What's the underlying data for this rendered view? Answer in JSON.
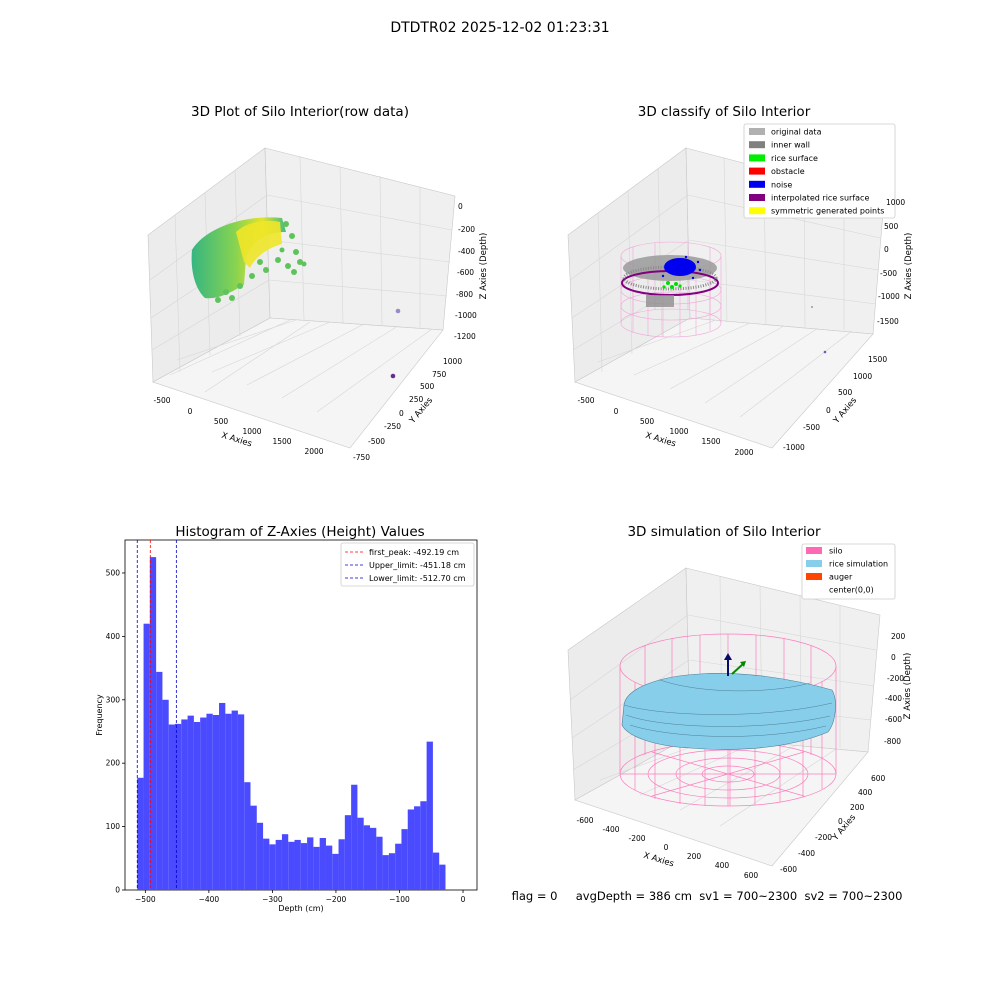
{
  "figure": {
    "suptitle": "DTDTR02 2025-12-02 01:23:31",
    "status_line": "flag = 0     avgDepth = 386 cm  sv1 = 700~2300  sv2 = 700~2300"
  },
  "panels": {
    "raw": {
      "title": "3D Plot of Silo Interior(row data)",
      "xlabel": "X Axies",
      "ylabel": "Y Axies",
      "zlabel": "Z Axies (Depth)",
      "xticks": [
        "-500",
        "0",
        "500",
        "1000",
        "1500",
        "2000"
      ],
      "yticks": [
        "-750",
        "-500",
        "-250",
        "0",
        "250",
        "500",
        "750",
        "1000"
      ],
      "zticks": [
        "0",
        "-200",
        "-400",
        "-600",
        "-800",
        "-1000",
        "-1200"
      ]
    },
    "classify": {
      "title": "3D classify of Silo Interior",
      "xlabel": "X Axies",
      "ylabel": "Y Axies",
      "zlabel": "Z Axies (Depth)",
      "xticks": [
        "-500",
        "0",
        "500",
        "1000",
        "1500",
        "2000"
      ],
      "yticks": [
        "-1000",
        "-500",
        "0",
        "500",
        "1000",
        "1500"
      ],
      "zticks": [
        "1000",
        "500",
        "0",
        "-500",
        "-1000",
        "-1500"
      ],
      "legend": [
        {
          "label": "original data",
          "color": "#b0b0b0"
        },
        {
          "label": "inner wall",
          "color": "#808080"
        },
        {
          "label": "rice surface",
          "color": "#00ee00"
        },
        {
          "label": "obstacle",
          "color": "#ff0000"
        },
        {
          "label": "noise",
          "color": "#0000ee"
        },
        {
          "label": "interpolated rice surface",
          "color": "#800080"
        },
        {
          "label": "symmetric generated points",
          "color": "#ffff00"
        }
      ]
    },
    "simulation": {
      "title": "3D simulation of Silo Interior",
      "xlabel": "X Axies",
      "ylabel": "Y Axies",
      "zlabel": "Z Axies (Depth)",
      "xticks": [
        "-600",
        "-400",
        "-200",
        "0",
        "200",
        "400",
        "600"
      ],
      "yticks": [
        "-600",
        "-400",
        "-200",
        "0",
        "200",
        "400",
        "600"
      ],
      "zticks": [
        "200",
        "0",
        "-200",
        "-400",
        "-600",
        "-800"
      ],
      "legend": [
        {
          "label": "silo",
          "color": "#ff69b4"
        },
        {
          "label": "rice simulation",
          "color": "#87ceeb"
        },
        {
          "label": "auger",
          "color": "#ff4500"
        },
        {
          "label": "center(0,0)",
          "color": ""
        }
      ]
    }
  },
  "chart_data": {
    "type": "bar",
    "title": "Histogram of Z-Axies (Height) Values",
    "xlabel": "Depth (cm)",
    "ylabel": "Frequency",
    "bar_color": "#4a4aff",
    "xlim": [
      -532,
      22
    ],
    "ylim": [
      0,
      552
    ],
    "bin_start": -512.7,
    "bin_width": 9.9,
    "values": [
      177,
      420,
      525,
      344,
      300,
      261,
      262,
      269,
      275,
      265,
      272,
      278,
      276,
      295,
      278,
      283,
      277,
      170,
      133,
      106,
      81,
      72,
      79,
      88,
      76,
      79,
      74,
      83,
      68,
      82,
      70,
      57,
      80,
      118,
      166,
      114,
      102,
      98,
      84,
      55,
      58,
      73,
      96,
      127,
      132,
      140,
      234,
      59,
      40
    ],
    "xticks": [
      -500,
      -400,
      -300,
      -200,
      -100,
      0
    ],
    "xtick_labels": [
      "−500",
      "−400",
      "−300",
      "−200",
      "−100",
      "0"
    ],
    "yticks": [
      0,
      100,
      200,
      300,
      400,
      500
    ],
    "vlines": [
      {
        "label": "first_peak: -492.19 cm",
        "x": -492.19,
        "color": "#ff0000"
      },
      {
        "label": "Upper_limit: -451.18 cm",
        "x": -451.18,
        "color": "#0000cc"
      },
      {
        "label": "Lower_limit: -512.70 cm",
        "x": -512.7,
        "color": "#0000cc"
      }
    ],
    "legend_position": "top-right"
  }
}
